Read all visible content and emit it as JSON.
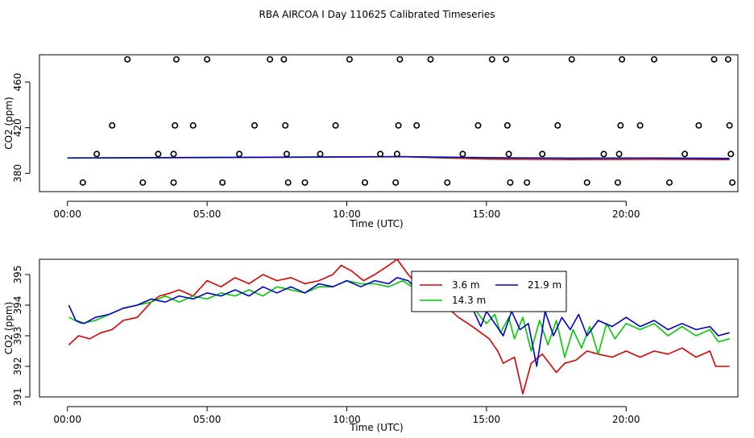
{
  "title": "RBA AIRCOA I  Day 110625  Calibrated Timeseries",
  "chart_data": [
    {
      "type": "scatter",
      "xlabel": "Time (UTC)",
      "ylabel": "CO2 (ppm)",
      "xlim": [
        -1,
        24
      ],
      "ylim": [
        364,
        484
      ],
      "xticks": [
        0,
        5,
        10,
        15,
        20
      ],
      "xtick_labels": [
        "00:00",
        "05:00",
        "10:00",
        "15:00",
        "20:00"
      ],
      "yticks": [
        380,
        420,
        460
      ],
      "ytick_labels": [
        "380",
        "420",
        "460"
      ],
      "circles": [
        {
          "x": 0.55,
          "y": 372
        },
        {
          "x": 1.05,
          "y": 397
        },
        {
          "x": 1.6,
          "y": 422
        },
        {
          "x": 2.15,
          "y": 480
        },
        {
          "x": 2.7,
          "y": 372
        },
        {
          "x": 3.25,
          "y": 397
        },
        {
          "x": 3.8,
          "y": 372
        },
        {
          "x": 3.8,
          "y": 397
        },
        {
          "x": 3.85,
          "y": 422
        },
        {
          "x": 3.9,
          "y": 480
        },
        {
          "x": 4.5,
          "y": 422
        },
        {
          "x": 5.0,
          "y": 480
        },
        {
          "x": 5.55,
          "y": 372
        },
        {
          "x": 6.15,
          "y": 397
        },
        {
          "x": 6.7,
          "y": 422
        },
        {
          "x": 7.25,
          "y": 480
        },
        {
          "x": 7.8,
          "y": 422
        },
        {
          "x": 7.75,
          "y": 480
        },
        {
          "x": 7.85,
          "y": 397
        },
        {
          "x": 7.9,
          "y": 372
        },
        {
          "x": 8.5,
          "y": 372
        },
        {
          "x": 9.05,
          "y": 397
        },
        {
          "x": 9.6,
          "y": 422
        },
        {
          "x": 10.1,
          "y": 480
        },
        {
          "x": 10.65,
          "y": 372
        },
        {
          "x": 11.2,
          "y": 397
        },
        {
          "x": 11.75,
          "y": 372
        },
        {
          "x": 11.8,
          "y": 397
        },
        {
          "x": 11.85,
          "y": 422
        },
        {
          "x": 11.9,
          "y": 480
        },
        {
          "x": 12.5,
          "y": 422
        },
        {
          "x": 13.0,
          "y": 480
        },
        {
          "x": 13.6,
          "y": 372
        },
        {
          "x": 14.15,
          "y": 397
        },
        {
          "x": 14.7,
          "y": 422
        },
        {
          "x": 15.2,
          "y": 480
        },
        {
          "x": 15.7,
          "y": 480
        },
        {
          "x": 15.75,
          "y": 422
        },
        {
          "x": 15.8,
          "y": 397
        },
        {
          "x": 15.85,
          "y": 372
        },
        {
          "x": 16.45,
          "y": 372
        },
        {
          "x": 17.0,
          "y": 397
        },
        {
          "x": 17.55,
          "y": 422
        },
        {
          "x": 18.05,
          "y": 480
        },
        {
          "x": 18.6,
          "y": 372
        },
        {
          "x": 19.2,
          "y": 397
        },
        {
          "x": 19.7,
          "y": 372
        },
        {
          "x": 19.75,
          "y": 397
        },
        {
          "x": 19.8,
          "y": 422
        },
        {
          "x": 19.85,
          "y": 480
        },
        {
          "x": 20.5,
          "y": 422
        },
        {
          "x": 21.0,
          "y": 480
        },
        {
          "x": 21.55,
          "y": 372
        },
        {
          "x": 22.1,
          "y": 397
        },
        {
          "x": 22.6,
          "y": 422
        },
        {
          "x": 23.15,
          "y": 480
        },
        {
          "x": 23.65,
          "y": 480
        },
        {
          "x": 23.7,
          "y": 422
        },
        {
          "x": 23.75,
          "y": 397
        },
        {
          "x": 23.8,
          "y": 372
        }
      ],
      "baseline_series": [
        {
          "name": "3.6 m",
          "color": "#dd0000",
          "x": [
            0,
            6,
            12,
            15,
            18,
            21,
            23.7
          ],
          "y": [
            393.5,
            393.8,
            394.5,
            392.5,
            392.0,
            392.3,
            392.0
          ]
        },
        {
          "name": "14.3 m",
          "color": "#00bb00",
          "x": [
            0,
            6,
            12,
            15,
            18,
            21,
            23.7
          ],
          "y": [
            393.4,
            394.0,
            394.6,
            393.6,
            393.2,
            393.4,
            393.0
          ]
        },
        {
          "name": "21.9 m",
          "color": "#0000cc",
          "x": [
            0,
            6,
            12,
            15,
            18,
            21,
            23.7
          ],
          "y": [
            393.6,
            394.1,
            394.7,
            393.8,
            393.4,
            393.5,
            393.2
          ]
        }
      ]
    },
    {
      "type": "line",
      "xlabel": "Time (UTC)",
      "ylabel": "CO2 (ppm)",
      "xlim": [
        -1,
        24
      ],
      "ylim": [
        391,
        395.5
      ],
      "xticks": [
        0,
        5,
        10,
        15,
        20
      ],
      "xtick_labels": [
        "00:00",
        "05:00",
        "10:00",
        "15:00",
        "20:00"
      ],
      "yticks": [
        391,
        392,
        393,
        394,
        395
      ],
      "ytick_labels": [
        "391",
        "392",
        "393",
        "394",
        "395"
      ],
      "legend": [
        "3.6 m",
        "21.9 m",
        "14.3 m"
      ],
      "legend_position": "top-right",
      "series": [
        {
          "name": "3.6 m",
          "color": "#dd0000",
          "points": [
            [
              0.05,
              392.7
            ],
            [
              0.4,
              393.0
            ],
            [
              0.8,
              392.9
            ],
            [
              1.2,
              393.1
            ],
            [
              1.6,
              393.2
            ],
            [
              2.0,
              393.5
            ],
            [
              2.5,
              393.6
            ],
            [
              3.0,
              394.1
            ],
            [
              3.3,
              394.3
            ],
            [
              3.7,
              394.4
            ],
            [
              4.0,
              394.5
            ],
            [
              4.5,
              394.3
            ],
            [
              5.0,
              394.8
            ],
            [
              5.5,
              394.6
            ],
            [
              6.0,
              394.9
            ],
            [
              6.5,
              394.7
            ],
            [
              7.0,
              395.0
            ],
            [
              7.5,
              394.8
            ],
            [
              8.0,
              394.9
            ],
            [
              8.5,
              394.7
            ],
            [
              9.0,
              394.8
            ],
            [
              9.5,
              395.0
            ],
            [
              9.8,
              395.3
            ],
            [
              10.2,
              395.1
            ],
            [
              10.6,
              394.8
            ],
            [
              11.0,
              395.0
            ],
            [
              11.5,
              395.3
            ],
            [
              11.8,
              395.5
            ],
            [
              12.2,
              395.0
            ],
            [
              12.6,
              394.6
            ],
            [
              13.0,
              394.4
            ],
            [
              13.5,
              394.0
            ],
            [
              14.0,
              393.6
            ],
            [
              14.5,
              393.3
            ],
            [
              14.8,
              393.1
            ],
            [
              15.1,
              392.9
            ],
            [
              15.4,
              392.5
            ],
            [
              15.6,
              392.1
            ],
            [
              16.0,
              392.3
            ],
            [
              16.3,
              391.1
            ],
            [
              16.6,
              392.1
            ],
            [
              17.0,
              392.4
            ],
            [
              17.5,
              391.8
            ],
            [
              17.8,
              392.1
            ],
            [
              18.2,
              392.2
            ],
            [
              18.6,
              392.5
            ],
            [
              19.0,
              392.4
            ],
            [
              19.5,
              392.3
            ],
            [
              20.0,
              392.5
            ],
            [
              20.5,
              392.3
            ],
            [
              21.0,
              392.5
            ],
            [
              21.5,
              392.4
            ],
            [
              22.0,
              392.6
            ],
            [
              22.5,
              392.3
            ],
            [
              23.0,
              392.5
            ],
            [
              23.2,
              392.0
            ],
            [
              23.7,
              392.0
            ]
          ]
        },
        {
          "name": "14.3 m",
          "color": "#00cc00",
          "points": [
            [
              0.05,
              393.6
            ],
            [
              0.5,
              393.4
            ],
            [
              1.0,
              393.5
            ],
            [
              1.5,
              393.7
            ],
            [
              2.0,
              393.9
            ],
            [
              2.5,
              394.0
            ],
            [
              3.0,
              394.1
            ],
            [
              3.5,
              394.3
            ],
            [
              4.0,
              394.1
            ],
            [
              4.5,
              394.3
            ],
            [
              5.0,
              394.2
            ],
            [
              5.5,
              394.4
            ],
            [
              6.0,
              394.3
            ],
            [
              6.5,
              394.5
            ],
            [
              7.0,
              394.3
            ],
            [
              7.5,
              394.6
            ],
            [
              8.0,
              394.5
            ],
            [
              8.5,
              394.4
            ],
            [
              9.0,
              394.6
            ],
            [
              9.5,
              394.6
            ],
            [
              10.0,
              394.8
            ],
            [
              10.5,
              394.7
            ],
            [
              11.0,
              394.7
            ],
            [
              11.5,
              394.6
            ],
            [
              12.0,
              394.8
            ],
            [
              12.5,
              394.5
            ],
            [
              13.0,
              394.3
            ],
            [
              13.5,
              394.3
            ],
            [
              14.0,
              394.1
            ],
            [
              14.5,
              394.0
            ],
            [
              14.8,
              393.6
            ],
            [
              15.0,
              393.4
            ],
            [
              15.3,
              393.7
            ],
            [
              15.5,
              393.1
            ],
            [
              15.8,
              393.6
            ],
            [
              16.0,
              392.9
            ],
            [
              16.3,
              393.6
            ],
            [
              16.6,
              392.5
            ],
            [
              16.9,
              393.5
            ],
            [
              17.2,
              392.7
            ],
            [
              17.5,
              393.5
            ],
            [
              17.8,
              392.3
            ],
            [
              18.1,
              393.2
            ],
            [
              18.4,
              392.6
            ],
            [
              18.7,
              393.3
            ],
            [
              19.0,
              392.4
            ],
            [
              19.3,
              393.4
            ],
            [
              19.6,
              392.9
            ],
            [
              20.0,
              393.4
            ],
            [
              20.5,
              393.2
            ],
            [
              21.0,
              393.4
            ],
            [
              21.5,
              393.0
            ],
            [
              22.0,
              393.3
            ],
            [
              22.5,
              393.0
            ],
            [
              23.0,
              393.2
            ],
            [
              23.3,
              392.8
            ],
            [
              23.7,
              392.9
            ]
          ]
        },
        {
          "name": "21.9 m",
          "color": "#0000cc",
          "points": [
            [
              0.05,
              394.0
            ],
            [
              0.3,
              393.5
            ],
            [
              0.6,
              393.4
            ],
            [
              1.0,
              393.6
            ],
            [
              1.5,
              393.7
            ],
            [
              2.0,
              393.9
            ],
            [
              2.5,
              394.0
            ],
            [
              3.0,
              394.2
            ],
            [
              3.5,
              394.1
            ],
            [
              4.0,
              394.3
            ],
            [
              4.5,
              394.2
            ],
            [
              5.0,
              394.4
            ],
            [
              5.5,
              394.3
            ],
            [
              6.0,
              394.5
            ],
            [
              6.5,
              394.3
            ],
            [
              7.0,
              394.6
            ],
            [
              7.5,
              394.4
            ],
            [
              8.0,
              394.6
            ],
            [
              8.5,
              394.4
            ],
            [
              9.0,
              394.7
            ],
            [
              9.5,
              394.6
            ],
            [
              10.0,
              394.8
            ],
            [
              10.5,
              394.6
            ],
            [
              11.0,
              394.8
            ],
            [
              11.5,
              394.7
            ],
            [
              11.8,
              394.9
            ],
            [
              12.2,
              394.8
            ],
            [
              12.5,
              394.5
            ],
            [
              13.0,
              394.3
            ],
            [
              13.5,
              394.3
            ],
            [
              14.0,
              394.1
            ],
            [
              14.5,
              393.9
            ],
            [
              14.8,
              393.3
            ],
            [
              15.0,
              393.8
            ],
            [
              15.3,
              393.4
            ],
            [
              15.6,
              393.0
            ],
            [
              15.9,
              393.8
            ],
            [
              16.2,
              393.2
            ],
            [
              16.5,
              393.4
            ],
            [
              16.8,
              392.0
            ],
            [
              17.1,
              393.8
            ],
            [
              17.4,
              393.0
            ],
            [
              17.7,
              393.6
            ],
            [
              18.0,
              393.2
            ],
            [
              18.3,
              393.7
            ],
            [
              18.6,
              393.0
            ],
            [
              19.0,
              393.5
            ],
            [
              19.5,
              393.3
            ],
            [
              20.0,
              393.6
            ],
            [
              20.5,
              393.3
            ],
            [
              21.0,
              393.5
            ],
            [
              21.5,
              393.2
            ],
            [
              22.0,
              393.4
            ],
            [
              22.5,
              393.2
            ],
            [
              23.0,
              393.3
            ],
            [
              23.3,
              393.0
            ],
            [
              23.7,
              393.1
            ]
          ]
        }
      ]
    }
  ]
}
